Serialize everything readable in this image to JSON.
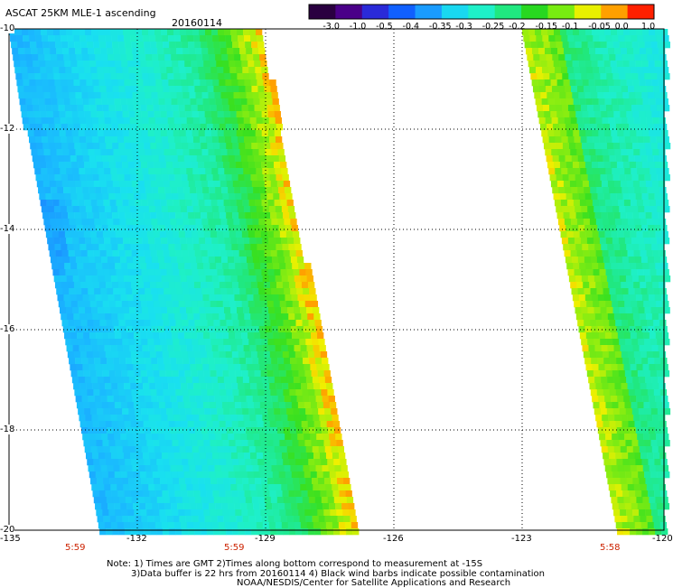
{
  "header": {
    "title": "ASCAT 25KM MLE-1 ascending",
    "date": "20160114"
  },
  "colorbar": {
    "labels": [
      "-3.0",
      "-1.0",
      "-0.5",
      "-0.4",
      "-0.35",
      "-0.3",
      "-0.25",
      "-0.2",
      "-0.15",
      "-0.1",
      "-0.05",
      "0.0",
      "1.0"
    ],
    "colors": [
      "#2a0040",
      "#4a0088",
      "#2a2ad8",
      "#1060ff",
      "#1a9cff",
      "#19d8f0",
      "#1ef0c8",
      "#20e880",
      "#28d820",
      "#78ec10",
      "#e8f000",
      "#ffa000",
      "#ff2000"
    ]
  },
  "axes": {
    "y_ticks": [
      "-10",
      "-12",
      "-14",
      "-16",
      "-18",
      "-20"
    ],
    "x_ticks": [
      "-135",
      "-132",
      "-129",
      "-126",
      "-123",
      "-120"
    ]
  },
  "swath_times": [
    "5:59",
    "5:59",
    "5:58"
  ],
  "notes": {
    "line1": "Note: 1) Times are GMT 2)Times along bottom correspond to measurement at -15S",
    "line2": "3)Data buffer is 22 hrs from 20160114 4) Black wind barbs indicate possible contamination",
    "line3": "NOAA/NESDIS/Center for Satellite Applications and Research"
  }
}
